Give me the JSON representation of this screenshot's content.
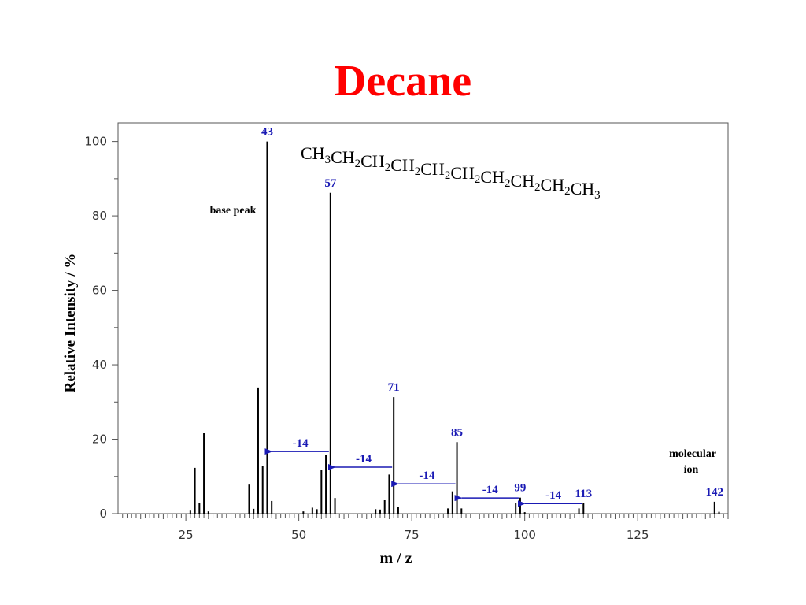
{
  "title": "Decane",
  "chart_data": {
    "type": "bar",
    "xlabel": "m / z",
    "ylabel": "Relative Intensity / %",
    "xlim": [
      10,
      145
    ],
    "ylim": [
      0,
      105
    ],
    "x_ticks": [
      25,
      50,
      75,
      100,
      125
    ],
    "y_ticks": [
      0,
      20,
      40,
      60,
      80,
      100
    ],
    "grid": false,
    "formula": [
      {
        "t": "CH",
        "sub": "3"
      },
      {
        "t": "CH",
        "sub": "2"
      },
      {
        "t": "CH",
        "sub": "2"
      },
      {
        "t": "CH",
        "sub": "2"
      },
      {
        "t": "CH",
        "sub": "2"
      },
      {
        "t": "CH",
        "sub": "2"
      },
      {
        "t": "CH",
        "sub": "2"
      },
      {
        "t": "CH",
        "sub": "2"
      },
      {
        "t": "CH",
        "sub": "2"
      },
      {
        "t": "CH",
        "sub": "3"
      }
    ],
    "peaks": [
      {
        "mz": 26,
        "intensity": 0.8
      },
      {
        "mz": 27,
        "intensity": 12.3
      },
      {
        "mz": 28,
        "intensity": 2.8
      },
      {
        "mz": 29,
        "intensity": 21.6
      },
      {
        "mz": 30,
        "intensity": 0.6
      },
      {
        "mz": 39,
        "intensity": 7.8
      },
      {
        "mz": 40,
        "intensity": 1.3
      },
      {
        "mz": 41,
        "intensity": 33.9
      },
      {
        "mz": 42,
        "intensity": 12.9
      },
      {
        "mz": 43,
        "intensity": 100
      },
      {
        "mz": 44,
        "intensity": 3.4
      },
      {
        "mz": 51,
        "intensity": 0.6
      },
      {
        "mz": 53,
        "intensity": 1.6
      },
      {
        "mz": 54,
        "intensity": 1.2
      },
      {
        "mz": 55,
        "intensity": 11.8
      },
      {
        "mz": 56,
        "intensity": 15.8
      },
      {
        "mz": 57,
        "intensity": 86.2
      },
      {
        "mz": 58,
        "intensity": 4.2
      },
      {
        "mz": 67,
        "intensity": 1.2
      },
      {
        "mz": 68,
        "intensity": 1.1
      },
      {
        "mz": 69,
        "intensity": 3.6
      },
      {
        "mz": 70,
        "intensity": 10.5
      },
      {
        "mz": 71,
        "intensity": 31.3
      },
      {
        "mz": 72,
        "intensity": 1.8
      },
      {
        "mz": 83,
        "intensity": 1.4
      },
      {
        "mz": 84,
        "intensity": 6.0
      },
      {
        "mz": 85,
        "intensity": 19.2
      },
      {
        "mz": 86,
        "intensity": 1.4
      },
      {
        "mz": 98,
        "intensity": 2.8
      },
      {
        "mz": 99,
        "intensity": 4.3
      },
      {
        "mz": 100,
        "intensity": 0.4
      },
      {
        "mz": 112,
        "intensity": 1.4
      },
      {
        "mz": 113,
        "intensity": 2.8
      },
      {
        "mz": 142,
        "intensity": 3.2
      },
      {
        "mz": 143,
        "intensity": 0.5
      }
    ],
    "peak_labels": [
      {
        "mz": 43,
        "text": "43"
      },
      {
        "mz": 57,
        "text": "57"
      },
      {
        "mz": 71,
        "text": "71"
      },
      {
        "mz": 85,
        "text": "85"
      },
      {
        "mz": 99,
        "text": "99"
      },
      {
        "mz": 113,
        "text": "113"
      },
      {
        "mz": 142,
        "text": "142"
      }
    ],
    "annotations": {
      "base_peak": "base peak",
      "molecular_ion": [
        "molecular",
        "ion"
      ]
    },
    "loss_arrows": [
      {
        "from_mz": 57,
        "to_mz": 43,
        "at_intensity": 16.7,
        "text": "-14"
      },
      {
        "from_mz": 71,
        "to_mz": 57,
        "at_intensity": 12.5,
        "text": "-14"
      },
      {
        "from_mz": 85,
        "to_mz": 71,
        "at_intensity": 8.0,
        "text": "-14"
      },
      {
        "from_mz": 99,
        "to_mz": 85,
        "at_intensity": 4.2,
        "text": "-14"
      },
      {
        "from_mz": 113,
        "to_mz": 99,
        "at_intensity": 2.7,
        "text": "-14"
      }
    ],
    "colors": {
      "title": "#ff0000",
      "peak_labels": "#1a1ab4",
      "arrows": "#1a1ab4",
      "bars": "#000000"
    }
  }
}
